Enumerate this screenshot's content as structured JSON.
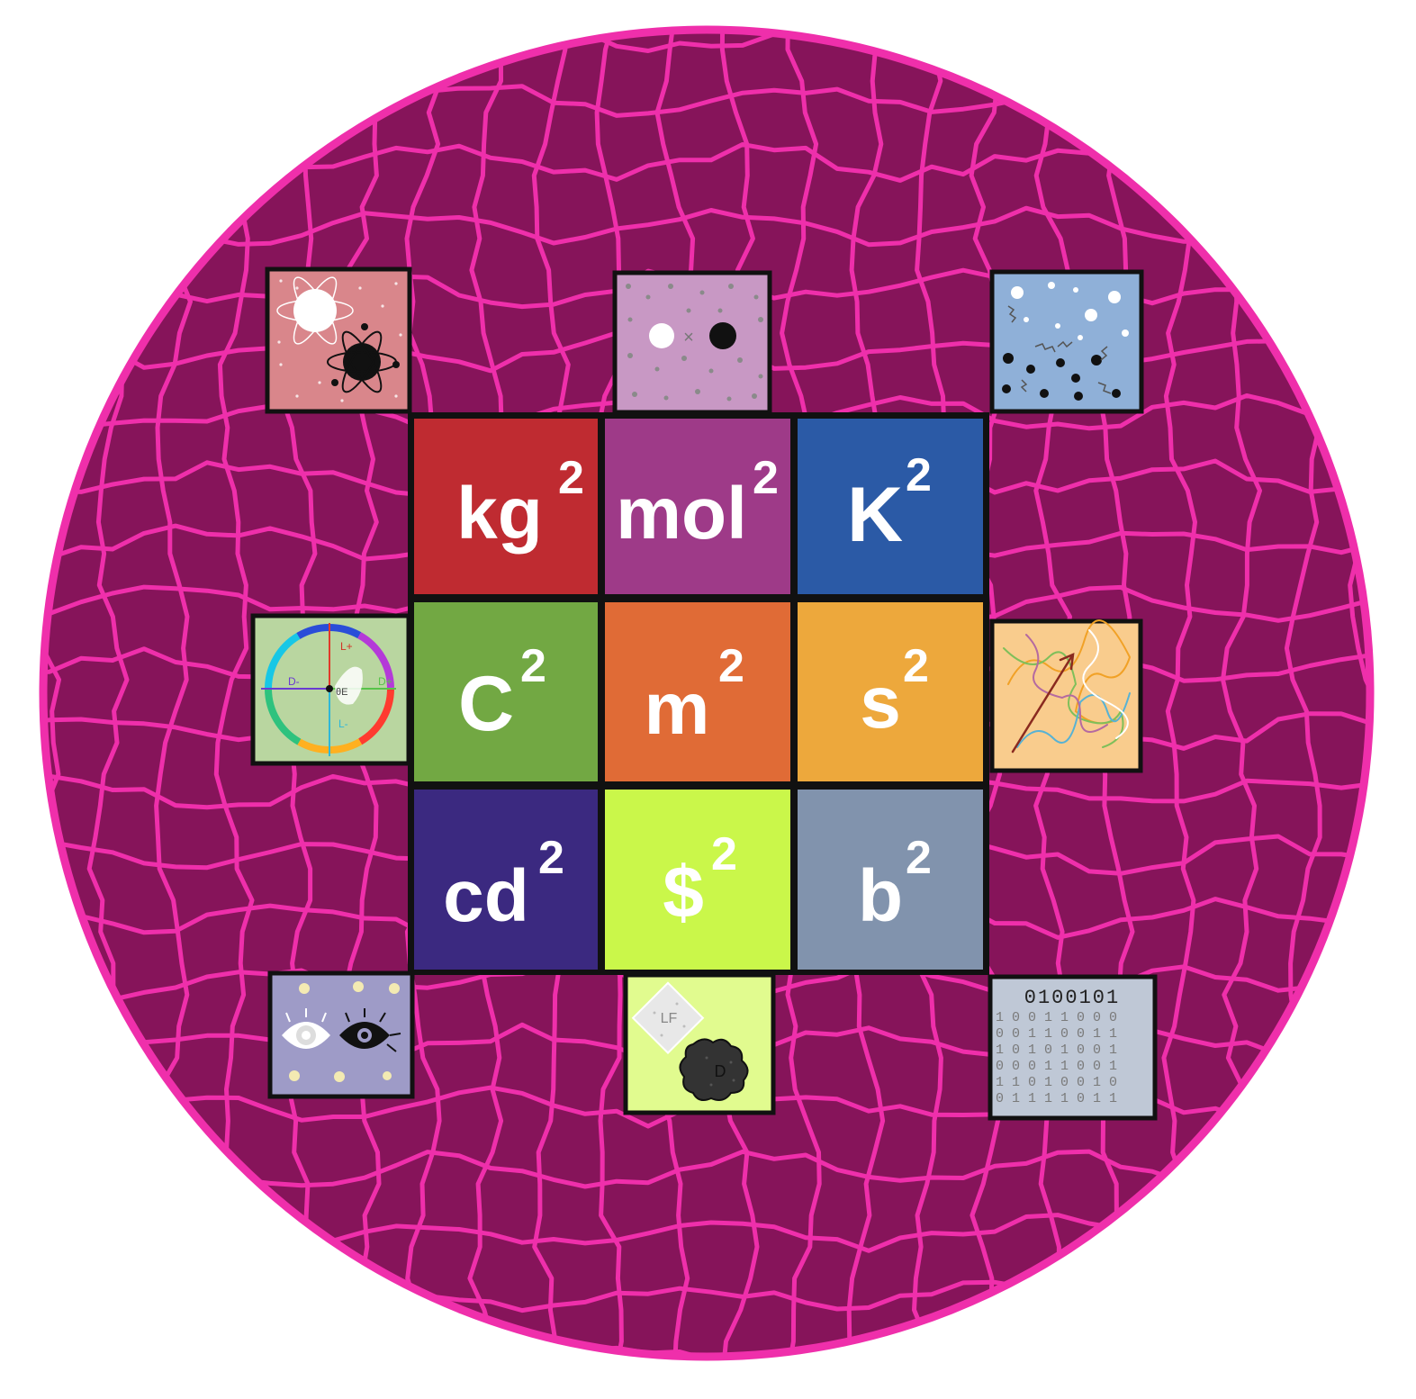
{
  "colors": {
    "page_background": "#ffffff",
    "disc_fill": "#86145a",
    "disc_lines": "#ef2fab",
    "tile_border": "#111111",
    "tile_text": "#ffffff"
  },
  "grid": {
    "tiles": [
      {
        "base": "kg",
        "exponent": "2",
        "color": "#bf2b31"
      },
      {
        "base": "mol",
        "exponent": "2",
        "color": "#9e3a88"
      },
      {
        "base": "K",
        "exponent": "2",
        "color": "#2b5aa6"
      },
      {
        "base": "C",
        "exponent": "2",
        "color": "#72a843"
      },
      {
        "base": "m",
        "exponent": "2",
        "color": "#e06b36"
      },
      {
        "base": "s",
        "exponent": "2",
        "color": "#eda83c"
      },
      {
        "base": "cd",
        "exponent": "2",
        "color": "#3b2980"
      },
      {
        "base": "$",
        "exponent": "2",
        "color": "#caf74a"
      },
      {
        "base": "b",
        "exponent": "2",
        "color": "#8193ad"
      }
    ]
  },
  "thumbnails": [
    {
      "name": "atoms-thumbnail",
      "icon": "atom-pair-icon",
      "background": "#d9868b"
    },
    {
      "name": "molecules-thumbnail",
      "icon": "particle-pair-icon",
      "background": "#c898c4"
    },
    {
      "name": "gas-thumbnail",
      "icon": "gas-particles-icon",
      "background": "#8fb0d8"
    },
    {
      "name": "color-wheel-thumbnail",
      "icon": "color-wheel-icon",
      "background": "#b9d6a0",
      "labels": [
        "L+",
        "L-",
        "D-",
        "D+",
        "θE"
      ]
    },
    {
      "name": "paths-thumbnail",
      "icon": "random-paths-icon",
      "background": "#f9cc8d"
    },
    {
      "name": "eyes-thumbnail",
      "icon": "eyes-icon",
      "background": "#9e9bc7"
    },
    {
      "name": "lf-d-thumbnail",
      "icon": "light-dark-blob-icon",
      "background": "#e1fb8f",
      "labels": [
        "LF",
        "D"
      ]
    },
    {
      "name": "binary-thumbnail",
      "icon": "binary-digits-icon",
      "background": "#bfc8d6",
      "labels": [
        "0100101"
      ]
    }
  ]
}
